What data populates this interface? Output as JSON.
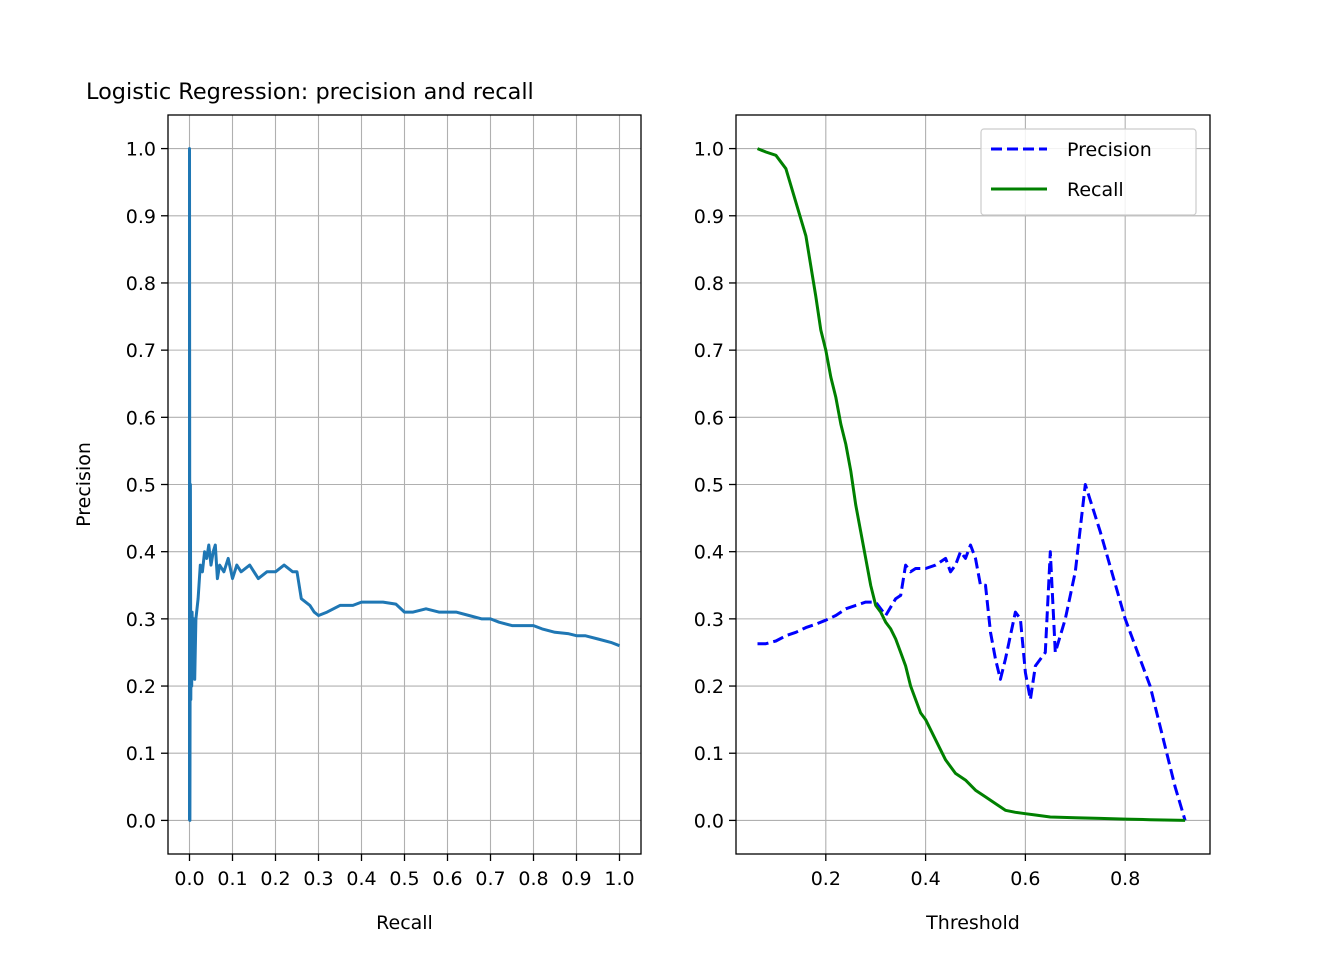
{
  "title": "Logistic Regression: precision and recall",
  "chart_data": [
    {
      "type": "line",
      "xlabel": "Recall",
      "ylabel": "Precision",
      "xlim": [
        -0.05,
        1.05
      ],
      "ylim": [
        -0.05,
        1.05
      ],
      "xticks": [
        0.0,
        0.1,
        0.2,
        0.3,
        0.4,
        0.5,
        0.6,
        0.7,
        0.8,
        0.9,
        1.0
      ],
      "xtick_labels": [
        "0.0",
        "0.1",
        "0.2",
        "0.3",
        "0.4",
        "0.5",
        "0.6",
        "0.7",
        "0.8",
        "0.9",
        "1.0"
      ],
      "yticks": [
        0.0,
        0.1,
        0.2,
        0.3,
        0.4,
        0.5,
        0.6,
        0.7,
        0.8,
        0.9,
        1.0
      ],
      "ytick_labels": [
        "0.0",
        "0.1",
        "0.2",
        "0.3",
        "0.4",
        "0.5",
        "0.6",
        "0.7",
        "0.8",
        "0.9",
        "1.0"
      ],
      "grid": true,
      "series": [
        {
          "color": "#1f77b4",
          "style": "solid",
          "x": [
            0.0,
            0.0,
            0.001,
            0.002,
            0.003,
            0.004,
            0.005,
            0.006,
            0.008,
            0.01,
            0.012,
            0.015,
            0.02,
            0.025,
            0.03,
            0.035,
            0.04,
            0.045,
            0.05,
            0.055,
            0.06,
            0.065,
            0.07,
            0.08,
            0.09,
            0.1,
            0.11,
            0.12,
            0.14,
            0.16,
            0.18,
            0.2,
            0.22,
            0.24,
            0.25,
            0.26,
            0.28,
            0.29,
            0.3,
            0.32,
            0.35,
            0.38,
            0.4,
            0.42,
            0.45,
            0.48,
            0.5,
            0.52,
            0.55,
            0.58,
            0.6,
            0.62,
            0.65,
            0.68,
            0.7,
            0.72,
            0.75,
            0.78,
            0.8,
            0.82,
            0.85,
            0.88,
            0.9,
            0.92,
            0.95,
            0.98,
            1.0
          ],
          "y": [
            0.0,
            1.0,
            0.0,
            0.5,
            0.18,
            0.3,
            0.2,
            0.31,
            0.24,
            0.3,
            0.21,
            0.3,
            0.33,
            0.38,
            0.37,
            0.4,
            0.39,
            0.41,
            0.38,
            0.4,
            0.41,
            0.36,
            0.38,
            0.37,
            0.39,
            0.36,
            0.38,
            0.37,
            0.38,
            0.36,
            0.37,
            0.37,
            0.38,
            0.37,
            0.37,
            0.33,
            0.32,
            0.31,
            0.305,
            0.31,
            0.32,
            0.32,
            0.325,
            0.325,
            0.325,
            0.322,
            0.31,
            0.31,
            0.315,
            0.31,
            0.31,
            0.31,
            0.305,
            0.3,
            0.3,
            0.295,
            0.29,
            0.29,
            0.29,
            0.285,
            0.28,
            0.278,
            0.275,
            0.275,
            0.27,
            0.265,
            0.26
          ]
        }
      ]
    },
    {
      "type": "line",
      "xlabel": "Threshold",
      "ylabel": "",
      "xlim": [
        0.02,
        0.97
      ],
      "ylim": [
        -0.05,
        1.05
      ],
      "xticks": [
        0.2,
        0.4,
        0.6,
        0.8
      ],
      "xtick_labels": [
        "0.2",
        "0.4",
        "0.6",
        "0.8"
      ],
      "yticks": [
        0.0,
        0.1,
        0.2,
        0.3,
        0.4,
        0.5,
        0.6,
        0.7,
        0.8,
        0.9,
        1.0
      ],
      "ytick_labels": [
        "0.0",
        "0.1",
        "0.2",
        "0.3",
        "0.4",
        "0.5",
        "0.6",
        "0.7",
        "0.8",
        "0.9",
        "1.0"
      ],
      "grid": true,
      "legend": "top-right",
      "series": [
        {
          "name": "Precision",
          "color": "#0000ff",
          "style": "dashed",
          "x": [
            0.063,
            0.08,
            0.1,
            0.12,
            0.14,
            0.16,
            0.18,
            0.2,
            0.22,
            0.24,
            0.26,
            0.28,
            0.3,
            0.32,
            0.34,
            0.35,
            0.36,
            0.37,
            0.38,
            0.4,
            0.42,
            0.44,
            0.45,
            0.46,
            0.47,
            0.48,
            0.49,
            0.5,
            0.51,
            0.52,
            0.53,
            0.54,
            0.55,
            0.56,
            0.58,
            0.59,
            0.6,
            0.61,
            0.62,
            0.64,
            0.65,
            0.66,
            0.68,
            0.7,
            0.72,
            0.75,
            0.8,
            0.85,
            0.9,
            0.92
          ],
          "y": [
            0.263,
            0.263,
            0.267,
            0.275,
            0.28,
            0.287,
            0.292,
            0.298,
            0.305,
            0.315,
            0.32,
            0.325,
            0.325,
            0.305,
            0.33,
            0.335,
            0.38,
            0.37,
            0.375,
            0.375,
            0.38,
            0.39,
            0.37,
            0.38,
            0.4,
            0.39,
            0.41,
            0.39,
            0.35,
            0.35,
            0.28,
            0.24,
            0.21,
            0.24,
            0.31,
            0.3,
            0.22,
            0.18,
            0.23,
            0.25,
            0.4,
            0.25,
            0.3,
            0.37,
            0.5,
            0.43,
            0.3,
            0.2,
            0.05,
            0.0
          ]
        },
        {
          "name": "Recall",
          "color": "#008000",
          "style": "solid",
          "x": [
            0.063,
            0.08,
            0.1,
            0.12,
            0.14,
            0.16,
            0.18,
            0.19,
            0.2,
            0.21,
            0.22,
            0.23,
            0.24,
            0.25,
            0.26,
            0.27,
            0.28,
            0.29,
            0.3,
            0.31,
            0.32,
            0.33,
            0.34,
            0.35,
            0.36,
            0.37,
            0.38,
            0.39,
            0.4,
            0.42,
            0.44,
            0.46,
            0.48,
            0.5,
            0.52,
            0.54,
            0.56,
            0.58,
            0.6,
            0.62,
            0.65,
            0.7,
            0.75,
            0.8,
            0.85,
            0.92
          ],
          "y": [
            1.0,
            0.995,
            0.99,
            0.97,
            0.92,
            0.87,
            0.78,
            0.73,
            0.7,
            0.66,
            0.63,
            0.59,
            0.56,
            0.52,
            0.47,
            0.43,
            0.39,
            0.35,
            0.32,
            0.31,
            0.295,
            0.285,
            0.27,
            0.25,
            0.23,
            0.2,
            0.18,
            0.16,
            0.15,
            0.12,
            0.09,
            0.07,
            0.06,
            0.045,
            0.035,
            0.025,
            0.015,
            0.012,
            0.01,
            0.008,
            0.005,
            0.004,
            0.003,
            0.002,
            0.001,
            0.0
          ]
        }
      ]
    }
  ]
}
